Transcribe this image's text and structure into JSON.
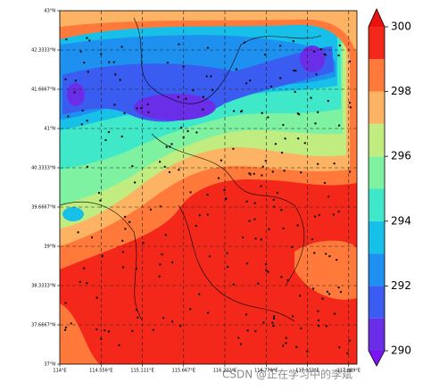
{
  "map": {
    "xlim": [
      114,
      118
    ],
    "ylim": [
      37,
      43
    ],
    "xticks": [
      {
        "value": 114,
        "label": "114°E"
      },
      {
        "value": 114.556,
        "label": "114.556°E"
      },
      {
        "value": 115.111,
        "label": "115.111°E"
      },
      {
        "value": 115.667,
        "label": "115.667°E"
      },
      {
        "value": 116.222,
        "label": "116.222°E"
      },
      {
        "value": 116.778,
        "label": "116.778°E"
      },
      {
        "value": 117.333,
        "label": "117.333°E"
      },
      {
        "value": 117.889,
        "label": "117.889°E"
      }
    ],
    "yticks": [
      {
        "value": 37,
        "label": "37°N"
      },
      {
        "value": 37.6667,
        "label": "37.6667°N"
      },
      {
        "value": 38.3333,
        "label": "38.3333°N"
      },
      {
        "value": 39,
        "label": "39°N"
      },
      {
        "value": 39.6667,
        "label": "39.6667°N"
      },
      {
        "value": 40.3333,
        "label": "40.3333°N"
      },
      {
        "value": 41,
        "label": "41°N"
      },
      {
        "value": 41.6667,
        "label": "41.6667°N"
      },
      {
        "value": 42.3333,
        "label": "42.3333°N"
      },
      {
        "value": 43,
        "label": "43°N"
      }
    ],
    "grid": true
  },
  "colorbar": {
    "levels": [
      290,
      291,
      292,
      293,
      294,
      295,
      296,
      297,
      298,
      299,
      300
    ],
    "colors": [
      "#6a2ee8",
      "#3a5cf0",
      "#1e90f0",
      "#16c0e8",
      "#3fe8c8",
      "#7ef2a0",
      "#c0ec80",
      "#fcb464",
      "#ff7a3a",
      "#f4281a"
    ],
    "extend_colors": [
      "#7a14f0",
      "#e8120e"
    ],
    "ticks": [
      290,
      292,
      294,
      296,
      298,
      300
    ]
  },
  "watermark": "CSDN @正在学习中的李斌"
}
